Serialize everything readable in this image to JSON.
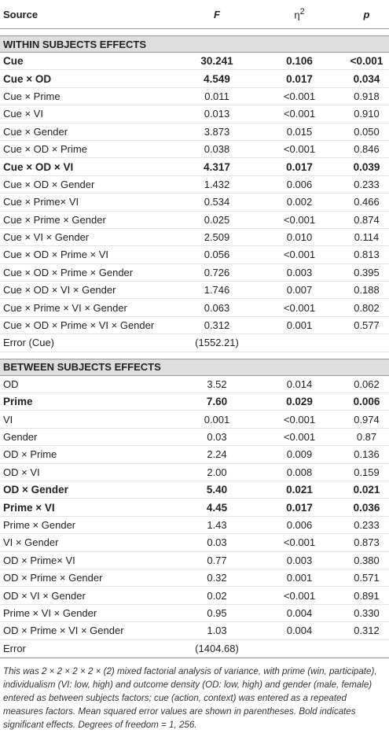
{
  "table": {
    "header": [
      "Source",
      "F",
      "η",
      "p"
    ],
    "header_sup": "2",
    "sections": [
      {
        "title": "WITHIN SUBJECTS EFFECTS",
        "rows": [
          {
            "bold": true,
            "cells": [
              "Cue",
              "30.241",
              "0.106",
              "<0.001"
            ]
          },
          {
            "bold": true,
            "cells": [
              "Cue × OD",
              "4.549",
              "0.017",
              "0.034"
            ]
          },
          {
            "bold": false,
            "cells": [
              "Cue × Prime",
              "0.011",
              "<0.001",
              "0.918"
            ]
          },
          {
            "bold": false,
            "cells": [
              "Cue × VI",
              "0.013",
              "<0.001",
              "0.910"
            ]
          },
          {
            "bold": false,
            "cells": [
              "Cue × Gender",
              "3.873",
              "0.015",
              "0.050"
            ]
          },
          {
            "bold": false,
            "cells": [
              "Cue × OD × Prime",
              "0.038",
              "<0.001",
              "0.846"
            ]
          },
          {
            "bold": true,
            "cells": [
              "Cue × OD × VI",
              "4.317",
              "0.017",
              "0.039"
            ]
          },
          {
            "bold": false,
            "cells": [
              "Cue × OD × Gender",
              "1.432",
              "0.006",
              "0.233"
            ]
          },
          {
            "bold": false,
            "cells": [
              "Cue × Prime× VI",
              "0.534",
              "0.002",
              "0.466"
            ]
          },
          {
            "bold": false,
            "cells": [
              "Cue × Prime × Gender",
              "0.025",
              "<0.001",
              "0.874"
            ]
          },
          {
            "bold": false,
            "cells": [
              "Cue × VI × Gender",
              "2.509",
              "0.010",
              "0.114"
            ]
          },
          {
            "bold": false,
            "cells": [
              "Cue × OD × Prime × VI",
              "0.056",
              "<0.001",
              "0.813"
            ]
          },
          {
            "bold": false,
            "cells": [
              "Cue × OD × Prime × Gender",
              "0.726",
              "0.003",
              "0.395"
            ]
          },
          {
            "bold": false,
            "cells": [
              "Cue × OD × VI × Gender",
              "1.746",
              "0.007",
              "0.188"
            ]
          },
          {
            "bold": false,
            "cells": [
              "Cue × Prime × VI × Gender",
              "0.063",
              "<0.001",
              "0.802"
            ]
          },
          {
            "bold": false,
            "cells": [
              "Cue × OD × Prime × VI × Gender",
              "0.312",
              "0.001",
              "0.577"
            ]
          },
          {
            "bold": false,
            "cells": [
              "Error (Cue)",
              "(1552.21)"
            ]
          }
        ]
      },
      {
        "title": "BETWEEN SUBJECTS EFFECTS",
        "rows": [
          {
            "bold": false,
            "cells": [
              "OD",
              "3.52",
              "0.014",
              "0.062"
            ]
          },
          {
            "bold": true,
            "cells": [
              "Prime",
              "7.60",
              "0.029",
              "0.006"
            ]
          },
          {
            "bold": false,
            "cells": [
              "VI",
              "0.001",
              "<0.001",
              "0.974"
            ]
          },
          {
            "bold": false,
            "cells": [
              "Gender",
              "0.03",
              "<0.001",
              "0.87"
            ]
          },
          {
            "bold": false,
            "cells": [
              "OD × Prime",
              "2.24",
              "0.009",
              "0.136"
            ]
          },
          {
            "bold": false,
            "cells": [
              "OD × VI",
              "2.00",
              "0.008",
              "0.159"
            ]
          },
          {
            "bold": true,
            "cells": [
              "OD × Gender",
              "5.40",
              "0.021",
              "0.021"
            ]
          },
          {
            "bold": true,
            "cells": [
              "Prime × VI",
              "4.45",
              "0.017",
              "0.036"
            ]
          },
          {
            "bold": false,
            "cells": [
              "Prime × Gender",
              "1.43",
              "0.006",
              "0.233"
            ]
          },
          {
            "bold": false,
            "cells": [
              "VI × Gender",
              "0.03",
              "<0.001",
              "0.873"
            ]
          },
          {
            "bold": false,
            "cells": [
              "OD × Prime× VI",
              "0.77",
              "0.003",
              "0.380"
            ]
          },
          {
            "bold": false,
            "cells": [
              "OD × Prime × Gender",
              "0.32",
              "0.001",
              "0.571"
            ]
          },
          {
            "bold": false,
            "cells": [
              "OD × VI × Gender",
              "0.02",
              "<0.001",
              "0.891"
            ]
          },
          {
            "bold": false,
            "cells": [
              "Prime × VI × Gender",
              "0.95",
              "0.004",
              "0.330"
            ]
          },
          {
            "bold": false,
            "cells": [
              "OD × Prime × VI × Gender",
              "1.03",
              "0.004",
              "0.312"
            ]
          },
          {
            "bold": false,
            "cells": [
              "Error",
              "(1404.68)"
            ]
          }
        ]
      }
    ],
    "footnote": "This was 2 × 2 × 2 × 2 × (2) mixed factorial analysis of variance, with prime (win, participate), individualism (VI: low, high) and outcome density (OD: low, high) and gender (male, female) entered as between subjects factors; cue (action, context) was entered as a repeated measures factors. Mean squared error values are shown in parentheses. Bold indicates significant effects. Degrees of freedom = 1, 256."
  }
}
